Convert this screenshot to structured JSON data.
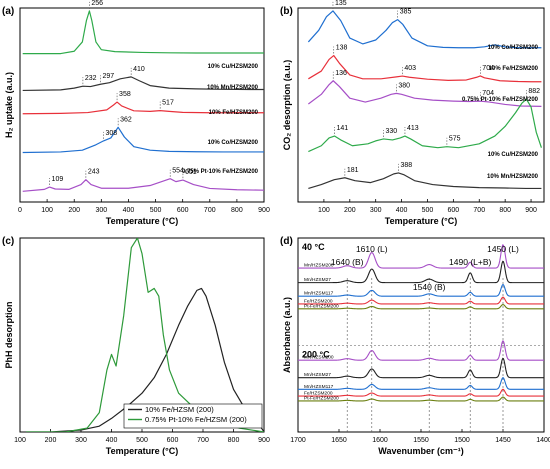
{
  "chart_data": [
    {
      "panel": "(a)",
      "type": "line",
      "xlabel": "Temperature (°C)",
      "ylabel": "H₂ uptake (a.u.)",
      "xlim": [
        0,
        900
      ],
      "xticks": [
        0,
        100,
        200,
        300,
        400,
        500,
        600,
        700,
        800,
        900
      ],
      "ylim": [
        0,
        1
      ],
      "grid": false,
      "series": [
        {
          "name": "10% Cu/HZSM200",
          "color": "#2eaa4a",
          "offset": 0.765,
          "x": [
            10,
            150,
            200,
            230,
            245,
            256,
            265,
            280,
            300,
            350,
            450,
            550,
            650,
            750,
            850,
            900
          ],
          "y": [
            0.0,
            0.0,
            0.012,
            0.06,
            0.17,
            0.22,
            0.17,
            0.06,
            0.02,
            0.01,
            0.006,
            0.004,
            0.003,
            0.003,
            0.003,
            0.003
          ],
          "peaks": [
            256
          ]
        },
        {
          "name": "10% Mn/HZSM200",
          "color": "#333333",
          "offset": 0.575,
          "x": [
            10,
            150,
            200,
            232,
            260,
            297,
            330,
            370,
            410,
            440,
            480,
            550,
            650,
            750,
            850,
            900
          ],
          "y": [
            0.0,
            0.003,
            0.012,
            0.022,
            0.02,
            0.032,
            0.04,
            0.06,
            0.07,
            0.05,
            0.025,
            0.012,
            0.008,
            0.006,
            0.005,
            0.005
          ],
          "peaks": [
            232,
            297,
            410
          ]
        },
        {
          "name": "10% Fe/HZSM200",
          "color": "#e8303a",
          "offset": 0.455,
          "x": [
            10,
            150,
            250,
            320,
            345,
            358,
            375,
            420,
            480,
            517,
            550,
            600,
            700,
            800,
            900
          ],
          "y": [
            0.0,
            0.002,
            0.006,
            0.02,
            0.045,
            0.06,
            0.04,
            0.015,
            0.012,
            0.016,
            0.012,
            0.007,
            0.005,
            0.005,
            0.005
          ],
          "peaks": [
            358,
            517
          ]
        },
        {
          "name": "10% Co/HZSM200",
          "color": "#1f6fd0",
          "offset": 0.255,
          "x": [
            10,
            150,
            230,
            280,
            308,
            335,
            362,
            385,
            420,
            480,
            550,
            650,
            750,
            850,
            900
          ],
          "y": [
            0.0,
            0.003,
            0.012,
            0.04,
            0.06,
            0.075,
            0.13,
            0.08,
            0.03,
            0.012,
            0.006,
            0.004,
            0.003,
            0.003,
            0.003
          ],
          "peaks": [
            308,
            362
          ]
        },
        {
          "name": "0.75% Pt-10% Fe/HZSM200",
          "color": "#a64fc7",
          "offset": 0.055,
          "x": [
            10,
            90,
            109,
            130,
            180,
            225,
            243,
            262,
            300,
            400,
            480,
            554,
            575,
            601,
            640,
            700,
            800,
            900
          ],
          "y": [
            0.0,
            0.01,
            0.022,
            0.012,
            0.01,
            0.035,
            0.06,
            0.035,
            0.016,
            0.016,
            0.03,
            0.065,
            0.05,
            0.058,
            0.035,
            0.015,
            0.008,
            0.006
          ],
          "peaks": [
            109,
            243,
            554,
            601
          ]
        }
      ]
    },
    {
      "panel": "(b)",
      "type": "line",
      "xlabel": "Temperature (°C)",
      "ylabel": "CO₂ desorption (a.u.)",
      "xlim": [
        0,
        950
      ],
      "xticks": [
        100,
        200,
        300,
        400,
        500,
        600,
        700,
        800,
        900
      ],
      "ylim": [
        0,
        1
      ],
      "grid": false,
      "series": [
        {
          "name": "10% Co/HZSM200",
          "color": "#1f6fd0",
          "offset": 0.785,
          "x": [
            40,
            80,
            110,
            135,
            165,
            200,
            250,
            300,
            340,
            365,
            385,
            405,
            440,
            500,
            560,
            620,
            680,
            720,
            760,
            800,
            850,
            900,
            940
          ],
          "y": [
            0.04,
            0.1,
            0.17,
            0.2,
            0.15,
            0.06,
            0.03,
            0.05,
            0.1,
            0.14,
            0.155,
            0.13,
            0.06,
            0.02,
            0.012,
            0.01,
            0.01,
            0.015,
            0.025,
            0.015,
            0.01,
            0.01,
            0.01
          ],
          "peaks": [
            135,
            385
          ]
        },
        {
          "name": "10% Fe/HZSM200",
          "color": "#e8303a",
          "offset": 0.615,
          "x": [
            40,
            90,
            120,
            138,
            160,
            200,
            250,
            320,
            380,
            403,
            430,
            500,
            580,
            650,
            690,
            704,
            720,
            780,
            850,
            900,
            940
          ],
          "y": [
            0.02,
            0.06,
            0.12,
            0.14,
            0.1,
            0.04,
            0.02,
            0.02,
            0.03,
            0.034,
            0.028,
            0.018,
            0.012,
            0.014,
            0.028,
            0.035,
            0.025,
            0.01,
            0.006,
            0.005,
            0.005
          ],
          "peaks": [
            138,
            403,
            704
          ]
        },
        {
          "name": "0.75% Pt-10% Fe/HZSM200",
          "color": "#a64fc7",
          "offset": 0.485,
          "x": [
            40,
            90,
            120,
            136,
            160,
            200,
            260,
            320,
            360,
            380,
            400,
            450,
            520,
            600,
            660,
            704,
            740,
            800,
            860,
            940
          ],
          "y": [
            0.02,
            0.07,
            0.12,
            0.14,
            0.11,
            0.05,
            0.03,
            0.05,
            0.07,
            0.075,
            0.07,
            0.05,
            0.04,
            0.035,
            0.033,
            0.035,
            0.03,
            0.018,
            0.01,
            0.008
          ],
          "peaks": [
            136,
            380,
            704
          ]
        },
        {
          "name": "10% Cu/HZSM200",
          "color": "#2eaa4a",
          "offset": 0.24,
          "x": [
            40,
            90,
            120,
            141,
            165,
            210,
            270,
            300,
            330,
            365,
            395,
            413,
            435,
            480,
            540,
            575,
            620,
            700,
            760,
            800,
            840,
            865,
            882,
            900,
            920,
            940
          ],
          "y": [
            0.02,
            0.05,
            0.09,
            0.1,
            0.08,
            0.05,
            0.06,
            0.075,
            0.085,
            0.08,
            0.09,
            0.1,
            0.085,
            0.05,
            0.04,
            0.045,
            0.04,
            0.06,
            0.1,
            0.15,
            0.22,
            0.27,
            0.29,
            0.25,
            0.12,
            0.04
          ],
          "peaks": [
            141,
            330,
            413,
            575,
            882
          ]
        },
        {
          "name": "10% Mn/HZSM200",
          "color": "#333333",
          "offset": 0.06,
          "x": [
            40,
            90,
            140,
            181,
            220,
            280,
            330,
            370,
            388,
            410,
            450,
            520,
            600,
            700,
            800,
            880,
            940
          ],
          "y": [
            0.01,
            0.03,
            0.055,
            0.065,
            0.05,
            0.04,
            0.06,
            0.085,
            0.09,
            0.08,
            0.05,
            0.03,
            0.02,
            0.014,
            0.012,
            0.01,
            0.01
          ],
          "peaks": [
            181,
            388
          ]
        }
      ]
    },
    {
      "panel": "(c)",
      "type": "line",
      "xlabel": "Temperature (°C)",
      "ylabel": "PhH desorption",
      "xlim": [
        100,
        900
      ],
      "xticks": [
        100,
        200,
        300,
        400,
        500,
        600,
        700,
        800,
        900
      ],
      "ylim": [
        0,
        1
      ],
      "grid": false,
      "legend": "bottom-right",
      "series": [
        {
          "name": "10% Fe/HZSM (200)",
          "color": "#222222",
          "x": [
            120,
            200,
            300,
            360,
            400,
            450,
            500,
            540,
            580,
            620,
            650,
            680,
            695,
            710,
            740,
            770,
            800,
            830,
            860,
            880,
            900
          ],
          "y": [
            0.0,
            0.0,
            0.01,
            0.03,
            0.07,
            0.13,
            0.2,
            0.28,
            0.4,
            0.55,
            0.65,
            0.73,
            0.74,
            0.7,
            0.55,
            0.36,
            0.22,
            0.14,
            0.08,
            0.05,
            0.0
          ]
        },
        {
          "name": "0.75% Pt-10% Fe/HZSM (200)",
          "color": "#2e9a3a",
          "x": [
            120,
            250,
            320,
            360,
            385,
            400,
            415,
            440,
            465,
            485,
            500,
            520,
            540,
            555,
            570,
            590,
            620,
            660,
            700,
            740,
            780,
            820,
            860,
            900
          ],
          "y": [
            0.0,
            0.0,
            0.02,
            0.1,
            0.32,
            0.4,
            0.34,
            0.6,
            0.95,
            1.0,
            0.92,
            0.72,
            0.74,
            0.7,
            0.5,
            0.32,
            0.2,
            0.14,
            0.1,
            0.06,
            0.04,
            0.02,
            0.01,
            0.0
          ]
        }
      ]
    },
    {
      "panel": "(d)",
      "type": "line",
      "xlabel": "Wavenumber (cm⁻¹)",
      "ylabel": "Absorbance (a.u.)",
      "xlim": [
        1700,
        1400
      ],
      "xticks": [
        1700,
        1650,
        1600,
        1550,
        1500,
        1450,
        1400
      ],
      "ylim": [
        0,
        1
      ],
      "grid": false,
      "temperature_groups": [
        "40 °C",
        "200 °C"
      ],
      "band_markers": [
        {
          "label": "1640 (B)",
          "x": 1640
        },
        {
          "label": "1610 (L)",
          "x": 1610
        },
        {
          "label": "1540 (B)",
          "x": 1540
        },
        {
          "label": "1490 (L+B)",
          "x": 1490
        },
        {
          "label": "1450 (L)",
          "x": 1450
        }
      ],
      "band_shape": {
        "centers": [
          1640,
          1610,
          1540,
          1490,
          1450
        ],
        "widths": [
          5,
          4,
          5,
          2.6,
          2.6
        ]
      },
      "series": [
        {
          "name": "Mn/HZSM200",
          "group": "40 °C",
          "color": "#a64fc7",
          "offset": 0.845,
          "amps": [
            0.012,
            0.08,
            0.018,
            0.03,
            0.12
          ]
        },
        {
          "name": "Mn/HZSM27",
          "group": "40 °C",
          "color": "#222222",
          "offset": 0.77,
          "amps": [
            0.01,
            0.07,
            0.018,
            0.05,
            0.11
          ]
        },
        {
          "name": "Mn/HZSM117",
          "group": "40 °C",
          "color": "#1f6fd0",
          "offset": 0.7,
          "amps": [
            0.006,
            0.03,
            0.012,
            0.02,
            0.06
          ]
        },
        {
          "name": "Fe/HZSM200",
          "group": "40 °C",
          "color": "#e8303a",
          "offset": 0.66,
          "amps": [
            0.004,
            0.02,
            0.006,
            0.014,
            0.035
          ]
        },
        {
          "name": "Pt-Fe/HZSM200",
          "group": "40 °C",
          "color": "#6b7f10",
          "offset": 0.635,
          "amps": [
            0.003,
            0.012,
            0.004,
            0.01,
            0.022
          ]
        },
        {
          "name": "Mn/HZSM200",
          "group": "200 °C",
          "color": "#a64fc7",
          "offset": 0.37,
          "amps": [
            0.008,
            0.05,
            0.01,
            0.025,
            0.1
          ]
        },
        {
          "name": "Mn/HZSM27",
          "group": "200 °C",
          "color": "#222222",
          "offset": 0.28,
          "amps": [
            0.008,
            0.045,
            0.012,
            0.04,
            0.1
          ]
        },
        {
          "name": "Mn/HZSM117",
          "group": "200 °C",
          "color": "#1f6fd0",
          "offset": 0.22,
          "amps": [
            0.005,
            0.025,
            0.008,
            0.02,
            0.06
          ]
        },
        {
          "name": "Fe/HZSM200",
          "group": "200 °C",
          "color": "#e8303a",
          "offset": 0.185,
          "amps": [
            0.004,
            0.016,
            0.006,
            0.012,
            0.035
          ]
        },
        {
          "name": "Pt-Fe/HZSM200",
          "group": "200 °C",
          "color": "#6b7f10",
          "offset": 0.16,
          "amps": [
            0.003,
            0.01,
            0.004,
            0.008,
            0.02
          ]
        }
      ]
    }
  ]
}
